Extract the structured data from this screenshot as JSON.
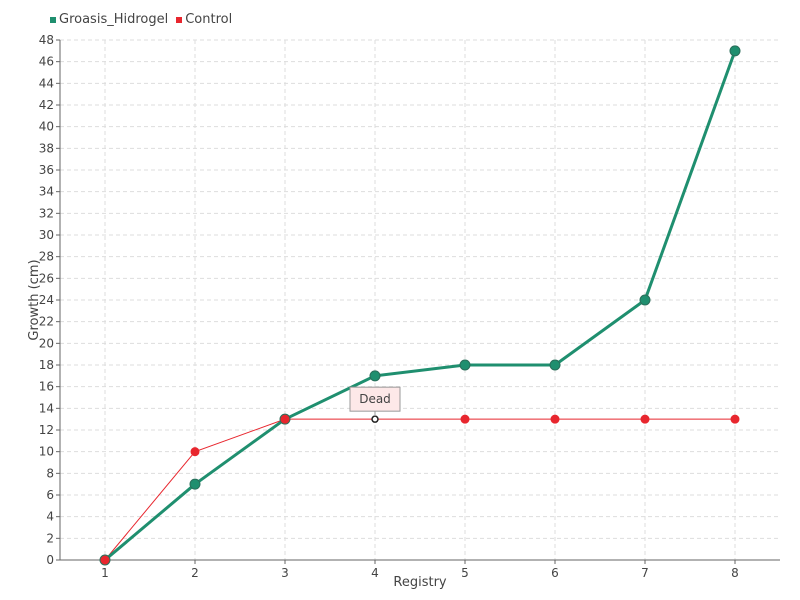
{
  "chart_data": {
    "type": "line",
    "xlabel": "Registry",
    "ylabel": "Growth (cm)",
    "x": [
      1,
      2,
      3,
      4,
      5,
      6,
      7,
      8
    ],
    "xlim": [
      0.5,
      8.5
    ],
    "ylim": [
      0,
      48
    ],
    "ytick_step": 2,
    "grid": true,
    "legend_position": "top-left",
    "series": [
      {
        "name": "Groasis_Hidrogel",
        "color": "#1f8f6f",
        "values": [
          0,
          7,
          13,
          17,
          18,
          18,
          24,
          47
        ]
      },
      {
        "name": "Control",
        "color": "#e8262e",
        "values": [
          0,
          10,
          13,
          13,
          13,
          13,
          13,
          13
        ]
      }
    ],
    "annotations": [
      {
        "text": "Dead",
        "series": "Control",
        "x": 4
      }
    ]
  }
}
